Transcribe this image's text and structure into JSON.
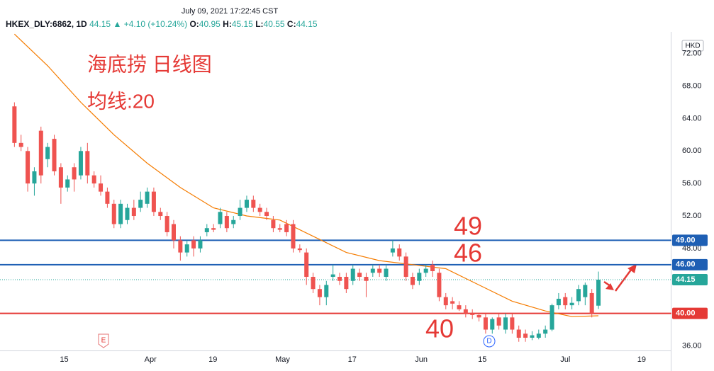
{
  "header": {
    "timestamp": "July 09, 2021 17:22:45 CST",
    "symbol": "HKEX_DLY:6862, 1D",
    "last": "44.15",
    "arrow": "▲",
    "change": "+4.10 (+10.24%)",
    "ohlc": [
      {
        "key": "O:",
        "value": "40.95"
      },
      {
        "key": "H:",
        "value": "45.15"
      },
      {
        "key": "L:",
        "value": "40.55"
      },
      {
        "key": "C:",
        "value": "44.15"
      }
    ]
  },
  "chart_data": {
    "type": "candlestick",
    "currency": "HKD",
    "up_color": "#26a69a",
    "down_color": "#ef5350",
    "categories": [
      null,
      null,
      null,
      null,
      null,
      null,
      null,
      null,
      null,
      null,
      null,
      null,
      null,
      null,
      null,
      null,
      null,
      null,
      null,
      null,
      null,
      null,
      null,
      null,
      null,
      null,
      null,
      null,
      null,
      null,
      null,
      null,
      null,
      null,
      null,
      null,
      null,
      null,
      null,
      null,
      null,
      null,
      null,
      null,
      null,
      null,
      null,
      null,
      null,
      null,
      null,
      null,
      null,
      null,
      null,
      null,
      null,
      null,
      null,
      null,
      null,
      null,
      null,
      null,
      null,
      null,
      null,
      null,
      null,
      null,
      null,
      null,
      null,
      null,
      null,
      null,
      null,
      null,
      null,
      null,
      null,
      null,
      null,
      null,
      null,
      null,
      null,
      null,
      null
    ],
    "open": [
      65.5,
      61,
      60,
      56,
      62.5,
      59,
      61.5,
      58,
      55.5,
      58,
      57,
      60,
      57,
      56,
      55,
      53.5,
      51,
      51.5,
      53,
      53,
      53.5,
      55,
      52.5,
      52,
      51,
      49,
      47.5,
      49,
      48,
      50,
      50.5,
      51,
      52,
      51,
      52,
      53,
      54,
      53,
      52.5,
      51.5,
      50.5,
      51,
      51,
      48,
      47.5,
      44.5,
      43,
      42,
      44.5,
      44.5,
      44.5,
      44,
      45,
      44.5,
      45,
      45.5,
      44.5,
      47.5,
      48,
      47,
      44.5,
      44,
      45,
      46,
      45,
      42,
      41.5,
      41,
      40.5,
      40,
      39.8,
      39.5,
      38,
      39.5,
      38,
      39.5,
      38,
      37.5,
      37,
      37,
      37.5,
      38,
      41,
      42,
      41,
      41.5,
      42,
      42.5,
      40.95
    ],
    "high": [
      66,
      62,
      60.5,
      58,
      63,
      61,
      62,
      58.5,
      57,
      58.5,
      60.5,
      61,
      57.5,
      57,
      55.5,
      54,
      54,
      53.5,
      54,
      55,
      55.5,
      55.5,
      53,
      52.5,
      51.5,
      49.5,
      49,
      49.5,
      49.5,
      51,
      51,
      53,
      52.5,
      52,
      54,
      54.5,
      54.5,
      53.5,
      53,
      52,
      51,
      51.5,
      51.5,
      48.5,
      48,
      45,
      43.5,
      44,
      46,
      45,
      45,
      46,
      45.5,
      45,
      46,
      46,
      46,
      49,
      48.5,
      47.5,
      45,
      45.5,
      46,
      46.5,
      45.5,
      42.5,
      42,
      41.5,
      41,
      40.5,
      40,
      40,
      39.5,
      40,
      40,
      40,
      38.5,
      38,
      37.8,
      38,
      38.5,
      41.2,
      42.5,
      42.5,
      42,
      43.5,
      43.8,
      43,
      45.15
    ],
    "low": [
      60.5,
      60,
      55,
      54.5,
      56,
      58,
      57,
      53.5,
      55,
      55,
      56.5,
      56,
      55.5,
      54.5,
      53,
      50.5,
      50.5,
      51,
      51.5,
      52.5,
      53,
      52,
      51.5,
      49.5,
      48,
      46.5,
      47,
      47,
      47.5,
      49.5,
      50,
      50.5,
      50,
      50.5,
      51.5,
      52.5,
      52.5,
      52,
      51.5,
      50,
      50,
      49.5,
      47.5,
      47.5,
      43.5,
      42.5,
      41,
      41,
      44,
      43.5,
      42.5,
      43.5,
      44,
      42,
      44.5,
      44.5,
      44,
      47,
      46.5,
      44,
      43,
      43.5,
      44.5,
      44.5,
      41.5,
      40.5,
      40.5,
      40.3,
      39.5,
      39.3,
      39,
      37.5,
      37.5,
      38,
      37.5,
      37.5,
      36.5,
      36.5,
      36.7,
      36.8,
      37,
      37.8,
      40.5,
      40.5,
      40.5,
      41,
      41,
      39.5,
      40.55
    ],
    "close": [
      61,
      60.5,
      56,
      57.5,
      57,
      60.5,
      57.5,
      55.5,
      56.5,
      56.5,
      60,
      57,
      56,
      55,
      53.5,
      51,
      53.5,
      53,
      52,
      54,
      55,
      52.5,
      52,
      50,
      49,
      47.5,
      48.5,
      48,
      49,
      50.5,
      50.3,
      52.5,
      50.5,
      51.5,
      53,
      54,
      53,
      52.5,
      52,
      50.5,
      50.3,
      50,
      48,
      47.8,
      44.5,
      43,
      42,
      43.5,
      44.8,
      44,
      43,
      45.5,
      44.5,
      44,
      45.5,
      45,
      45.5,
      48,
      47,
      44.5,
      43.5,
      45,
      45.5,
      45.2,
      42,
      41,
      41.2,
      40.5,
      40,
      39.8,
      39.5,
      38,
      39.3,
      38.5,
      39.5,
      38,
      37,
      37,
      37.3,
      37.5,
      38,
      41,
      41.8,
      41,
      41.3,
      43,
      43.5,
      40,
      44.15
    ],
    "moving_average": {
      "color": "#f57c00",
      "x": [
        0,
        5,
        10,
        15,
        20,
        25,
        30,
        35,
        40,
        45,
        50,
        55,
        60,
        65,
        70,
        75,
        80,
        84,
        88
      ],
      "values": [
        74.4,
        70.5,
        66,
        62,
        58.5,
        55.5,
        53,
        52,
        51.5,
        49.5,
        47.5,
        46.5,
        46,
        45.5,
        43.5,
        41.5,
        40.3,
        39.6,
        39.7
      ]
    },
    "levels": [
      {
        "value": 49,
        "label": "49.00",
        "color": "#1e5fb4"
      },
      {
        "value": 46,
        "label": "46.00",
        "color": "#1e5fb4"
      },
      {
        "value": 40,
        "label": "40.00",
        "color": "#e53935"
      }
    ],
    "last_price": {
      "value": 44.15,
      "label": "44.15",
      "color": "#26a69a"
    },
    "annotations": [
      "海底捞 日线图",
      "均线:20",
      "49",
      "46",
      "40"
    ],
    "markers": [
      "E",
      "D"
    ],
    "ylim": [
      35.43,
      74.68
    ],
    "yticks": [
      {
        "value": 36,
        "label": "36.00"
      },
      {
        "value": 48,
        "label": "48.00"
      },
      {
        "value": 52,
        "label": "52.00"
      },
      {
        "value": 56,
        "label": "56.00"
      },
      {
        "value": 60,
        "label": "60.00"
      },
      {
        "value": 64,
        "label": "64.00"
      },
      {
        "value": 68,
        "label": "68.00"
      },
      {
        "value": 72,
        "label": "72.00"
      }
    ],
    "xlim": [
      -1,
      99
    ],
    "xticks": [
      {
        "value": 7.5,
        "label": "15"
      },
      {
        "value": 20.5,
        "label": "Apr"
      },
      {
        "value": 29.9,
        "label": "19"
      },
      {
        "value": 40.4,
        "label": "May"
      },
      {
        "value": 50.9,
        "label": "17"
      },
      {
        "value": 61.3,
        "label": "Jun"
      },
      {
        "value": 70.5,
        "label": "15"
      },
      {
        "value": 83,
        "label": "Jul"
      },
      {
        "value": 94.5,
        "label": "19"
      }
    ]
  }
}
